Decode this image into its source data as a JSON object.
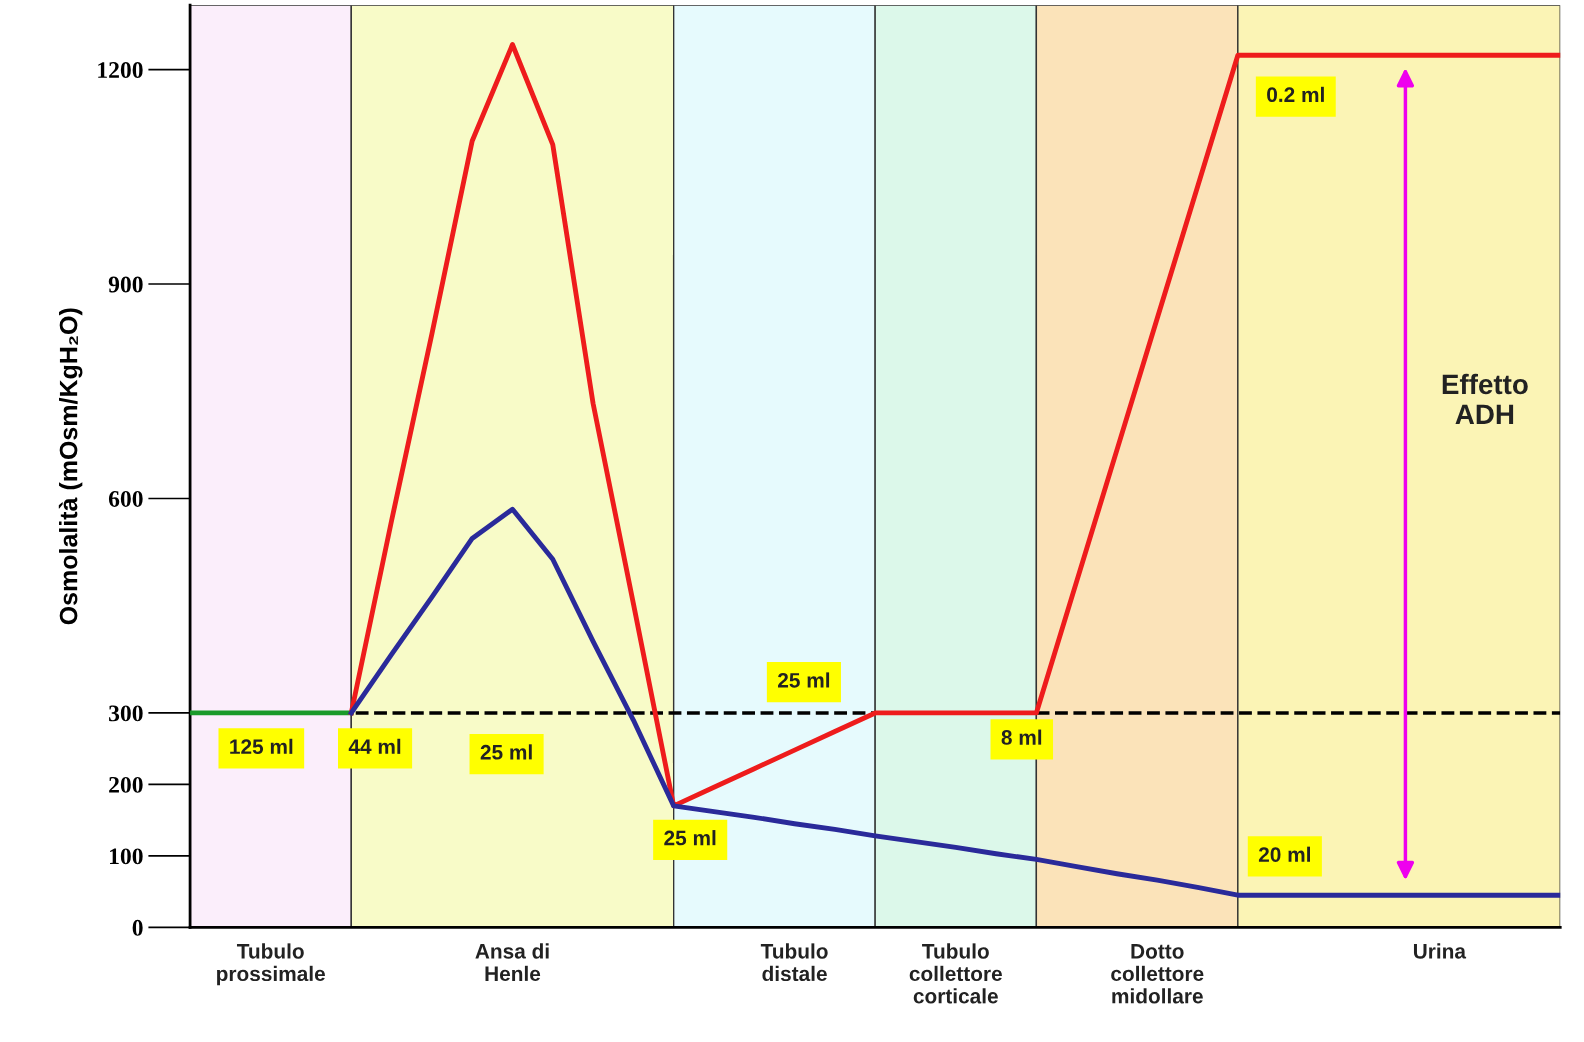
{
  "chart_data": {
    "type": "line",
    "ylabel": "Osmolalità (mOsm/KgH₂O)",
    "categories": [
      null,
      null,
      "Tubulo\nprossimale",
      null,
      null,
      null,
      null,
      null,
      "Ansa di\nHenle",
      null,
      null,
      null,
      null,
      null,
      null,
      "Tubulo\ndistale",
      null,
      null,
      null,
      "Tubulo\ncollettore\ncorticale",
      null,
      null,
      null,
      null,
      "Dotto\ncollettore\nmidollare",
      null,
      null,
      null,
      null,
      null,
      null,
      "Urina",
      null,
      null,
      null
    ],
    "ylim": [
      0,
      1290
    ],
    "yticks": [
      0,
      100,
      200,
      300,
      600,
      900,
      1200
    ],
    "grid": false,
    "legend": false,
    "marker": "none",
    "line_style": "solid",
    "series": [
      {
        "color": "#1a9a2a",
        "values": [
          300,
          300,
          300,
          300,
          300,
          null,
          null,
          null,
          null,
          null,
          null,
          null,
          null,
          null,
          null,
          null,
          null,
          null,
          null,
          null,
          null,
          null,
          null,
          null,
          null,
          null,
          null,
          null,
          null,
          null,
          null,
          null,
          null,
          null,
          null
        ]
      },
      {
        "color": "#ee1c1c",
        "values": [
          null,
          null,
          null,
          null,
          300,
          569,
          830,
          1100,
          1235,
          1095,
          733,
          453,
          170,
          196,
          222,
          248,
          274,
          300,
          300,
          300,
          300,
          300,
          484,
          668,
          852,
          1036,
          1220,
          1220,
          1220,
          1220,
          1220,
          1220,
          1220,
          1220,
          1220
        ]
      },
      {
        "color": "#2a2a9a",
        "values": [
          null,
          null,
          null,
          null,
          300,
          382,
          462,
          544,
          585,
          515,
          400,
          290,
          170,
          162,
          154,
          145,
          137,
          128,
          120,
          112,
          103,
          95,
          85,
          75,
          66,
          56,
          45,
          45,
          45,
          45,
          45,
          45,
          45,
          45,
          45
        ]
      }
    ],
    "ref_lines": [
      {
        "axis": "y",
        "value": 300,
        "color": "#000000",
        "line_style": "dashed"
      }
    ],
    "annotations": [
      "125 ml",
      "44 ml",
      "25 ml",
      "25 ml",
      "25 ml",
      "8 ml",
      "0.2 ml",
      "20 ml",
      "Effetto\nADH"
    ]
  }
}
